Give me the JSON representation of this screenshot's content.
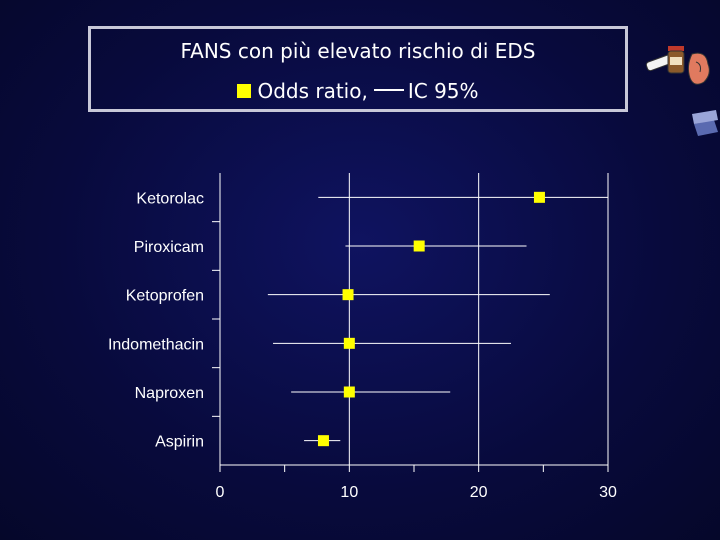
{
  "header": {
    "title": "FANS con più elevato rischio di EDS",
    "legend_marker_label": "Odds ratio,",
    "legend_line_label": "IC 95%"
  },
  "colors": {
    "marker": "#ffff00",
    "axis": "#ffffff",
    "background": "#0b0e4a"
  },
  "icons": {
    "decoration": "medicine-clipart-icon"
  },
  "chart_data": {
    "type": "scatter",
    "orientation": "horizontal-forest-plot",
    "title": "FANS con più elevato rischio di EDS",
    "categories": [
      "Ketorolac",
      "Piroxicam",
      "Ketoprofen",
      "Indomethacin",
      "Naproxen",
      "Aspirin"
    ],
    "series": [
      {
        "name": "Odds ratio",
        "values": [
          24.7,
          15.4,
          9.9,
          10.0,
          10.0,
          8.0
        ],
        "ci_low": [
          7.6,
          9.7,
          3.7,
          4.1,
          5.5,
          6.5
        ],
        "ci_high": [
          30.0,
          23.7,
          25.5,
          22.5,
          17.8,
          9.3
        ]
      }
    ],
    "x_ticks": [
      0,
      10,
      20,
      30
    ],
    "xlim": [
      0,
      30
    ],
    "grid": "vertical"
  }
}
